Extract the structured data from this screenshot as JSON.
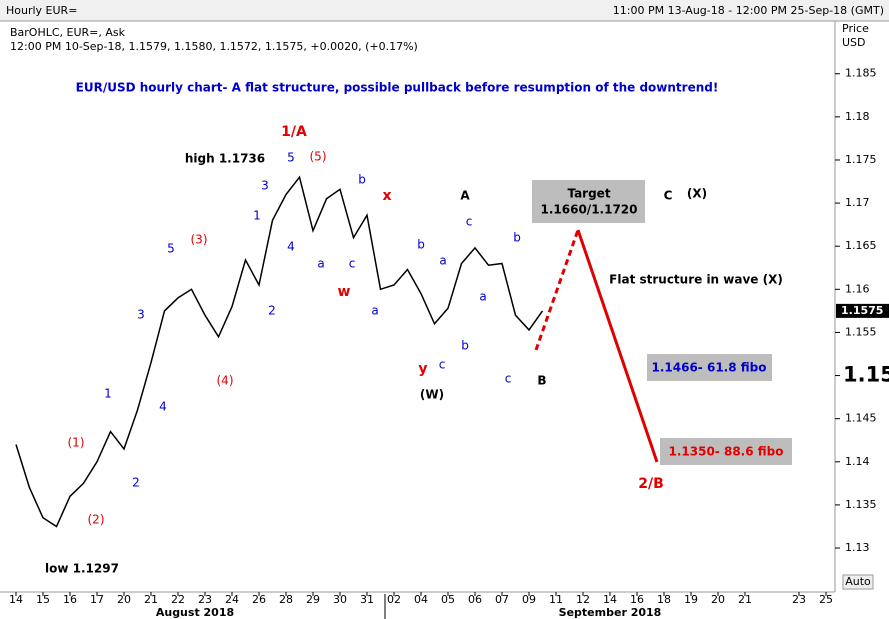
{
  "header": {
    "title": "Hourly EUR=",
    "range": "11:00 PM 13-Aug-18 - 12:00 PM 25-Sep-18 (GMT)",
    "axis_unit": [
      "Price",
      "USD"
    ],
    "auto_button": "Auto"
  },
  "chart_data": {
    "type": "line",
    "title": "EUR/USD hourly chart- A flat structure, possible pullback before resumption of the downtrend!",
    "legend_lines": [
      "BarOHLC, EUR=, Ask",
      "12:00 PM 10-Sep-18, 1.1579, 1.1580, 1.1572, 1.1575, +0.0020, (+0.17%)"
    ],
    "categories": [
      "14",
      null,
      "15",
      null,
      "16",
      null,
      "17",
      null,
      "20",
      null,
      "21",
      null,
      "22",
      null,
      "23",
      null,
      "24",
      null,
      "26",
      null,
      "28",
      null,
      "29",
      null,
      "30",
      null,
      "31",
      null,
      "02",
      null,
      "04",
      null,
      "05",
      null,
      "06",
      null,
      "07",
      null,
      "09",
      null,
      "11",
      null,
      "12",
      null,
      "14",
      null,
      "16",
      null,
      "18",
      null,
      "19",
      null,
      "20",
      null,
      "21",
      null,
      null,
      null,
      "23",
      null,
      "25"
    ],
    "values": [
      1.142,
      1.137,
      1.1335,
      1.1325,
      1.136,
      1.1375,
      1.14,
      1.1435,
      1.1415,
      1.146,
      1.1515,
      1.1575,
      1.159,
      1.16,
      1.157,
      1.1545,
      1.158,
      1.1634,
      1.1605,
      1.168,
      1.171,
      1.173,
      1.1668,
      1.1705,
      1.1716,
      1.166,
      1.1686,
      1.16,
      1.1605,
      1.1623,
      1.1595,
      1.156,
      1.1578,
      1.163,
      1.1648,
      1.1628,
      1.163,
      1.157,
      1.1553,
      1.1575,
      null,
      null,
      null,
      null,
      null,
      null,
      null,
      null,
      null,
      null,
      null,
      null,
      null,
      null,
      null,
      null,
      null,
      null,
      null,
      null,
      null
    ],
    "color": "#000000",
    "ylim": [
      1.1249,
      1.191
    ],
    "yticks": [
      1.13,
      1.135,
      1.14,
      1.145,
      1.155,
      1.16,
      1.165,
      1.17,
      1.175,
      1.18,
      1.185
    ],
    "axis_marker": 1.15,
    "last_price": 1.1575,
    "months": [
      "August 2018",
      "September 2018"
    ],
    "annotations": [
      {
        "text": "1/A",
        "color": "#e00000",
        "bold": true
      },
      {
        "text": "high 1.1736",
        "color": "#000000",
        "bold": true
      },
      {
        "text": "5",
        "color": "#0000cc",
        "bold": false
      },
      {
        "text": "(5)",
        "color": "#e00000",
        "bold": false
      },
      {
        "text": "3",
        "color": "#0000cc",
        "bold": false
      },
      {
        "text": "1",
        "color": "#0000cc",
        "bold": false
      },
      {
        "text": "4",
        "color": "#0000cc",
        "bold": false
      },
      {
        "text": "2",
        "color": "#0000cc",
        "bold": false
      },
      {
        "text": "a",
        "color": "#0000cc",
        "bold": false
      },
      {
        "text": "c",
        "color": "#0000cc",
        "bold": false
      },
      {
        "text": "b",
        "color": "#0000cc",
        "bold": false
      },
      {
        "text": "x",
        "color": "#e00000",
        "bold": true
      },
      {
        "text": "w",
        "color": "#e00000",
        "bold": true
      },
      {
        "text": "a",
        "color": "#0000cc",
        "bold": false
      },
      {
        "text": "A",
        "color": "#000000",
        "bold": true
      },
      {
        "text": "c",
        "color": "#0000cc",
        "bold": false
      },
      {
        "text": "b",
        "color": "#0000cc",
        "bold": false
      },
      {
        "text": "a",
        "color": "#0000cc",
        "bold": false
      },
      {
        "text": "a",
        "color": "#0000cc",
        "bold": false
      },
      {
        "text": "b",
        "color": "#0000cc",
        "bold": false
      },
      {
        "text": "b",
        "color": "#0000cc",
        "bold": false
      },
      {
        "text": "c",
        "color": "#0000cc",
        "bold": false
      },
      {
        "text": "y",
        "color": "#e00000",
        "bold": true
      },
      {
        "text": "(W)",
        "color": "#000000",
        "bold": true
      },
      {
        "text": "c",
        "color": "#0000cc",
        "bold": false
      },
      {
        "text": "B",
        "color": "#000000",
        "bold": true
      },
      {
        "text": "C",
        "color": "#000000",
        "bold": true
      },
      {
        "text": "(X)",
        "color": "#000000",
        "bold": true
      },
      {
        "text": "Flat structure in wave (X)",
        "color": "#000000",
        "bold": true
      },
      {
        "text": "2/B",
        "color": "#e00000",
        "bold": true
      },
      {
        "text": "(3)",
        "color": "#e00000",
        "bold": false
      },
      {
        "text": "5",
        "color": "#0000cc",
        "bold": false
      },
      {
        "text": "3",
        "color": "#0000cc",
        "bold": false
      },
      {
        "text": "(4)",
        "color": "#e00000",
        "bold": false
      },
      {
        "text": "4",
        "color": "#0000cc",
        "bold": false
      },
      {
        "text": "1",
        "color": "#0000cc",
        "bold": false
      },
      {
        "text": "(1)",
        "color": "#e00000",
        "bold": false
      },
      {
        "text": "(2)",
        "color": "#e00000",
        "bold": false
      },
      {
        "text": "2",
        "color": "#0000cc",
        "bold": false
      },
      {
        "text": "low 1.1297",
        "color": "#000000",
        "bold": true
      }
    ],
    "boxes": {
      "target": [
        "Target",
        "1.1660/1.1720"
      ],
      "fibo_618": "1.1466- 61.8 fibo",
      "fibo_886": "1.1350- 88.6 fibo"
    }
  }
}
